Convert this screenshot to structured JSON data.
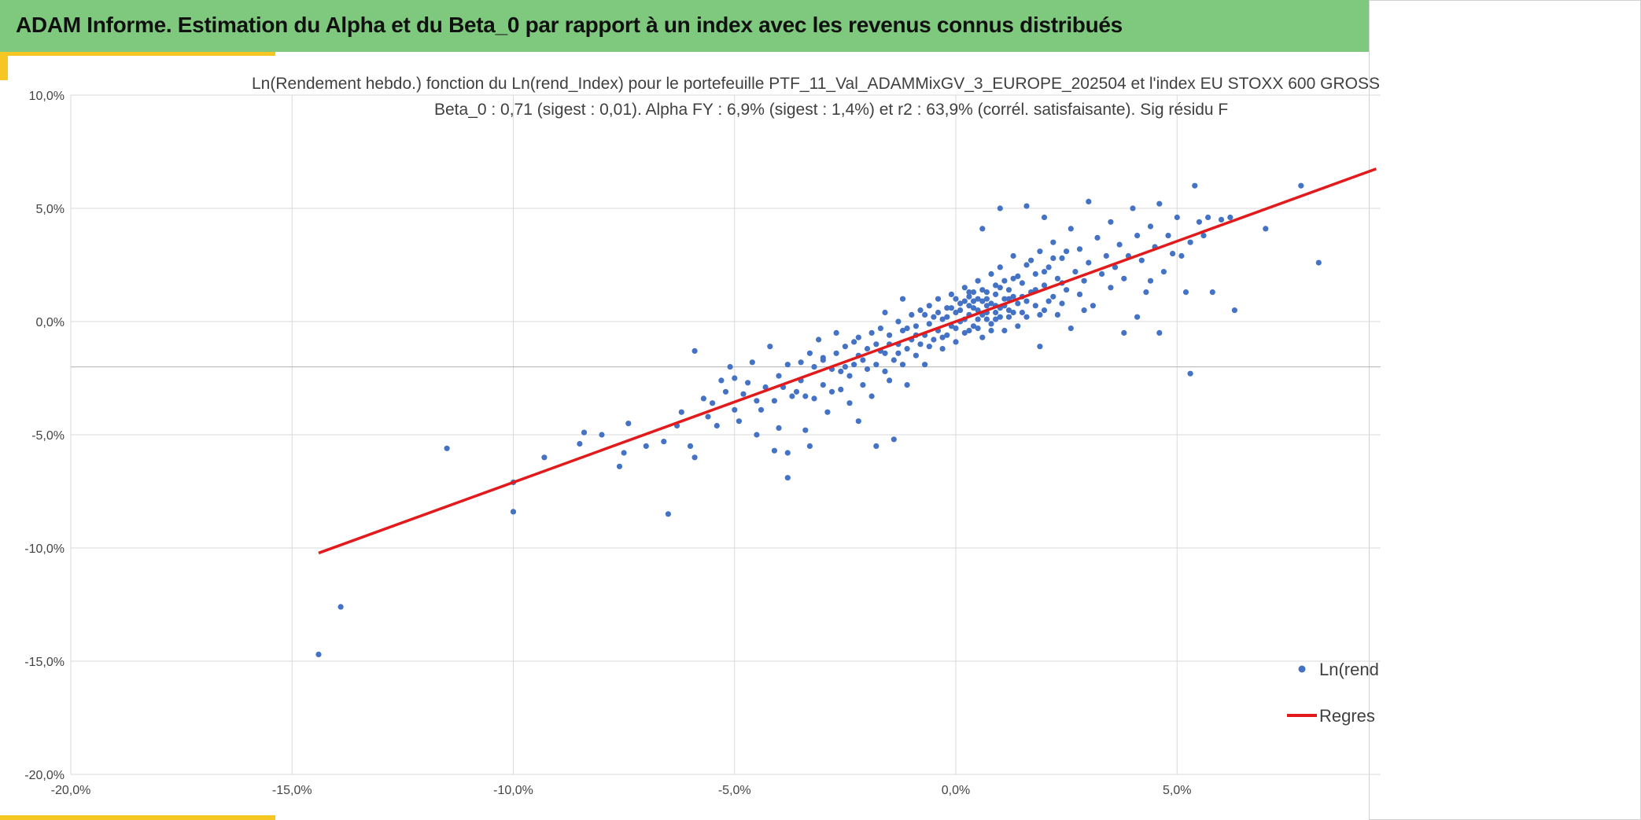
{
  "header": {
    "title": "ADAM Informe. Estimation du Alpha et du Beta_0 par rapport à un index avec les revenus connus distribués"
  },
  "colors": {
    "header_bg": "#7fc97f",
    "accent": "#f6c623",
    "points": "#4472c4",
    "regression": "#e31a1c",
    "grid": "#d9d9d9"
  },
  "chart_data": {
    "type": "scatter",
    "title": "Ln(Rendement hebdo.) fonction du Ln(rend_Index) pour le portefeuille PTF_11_Val_ADAMMixGV_3_EUROPE_202504 et l'index EU STOXX 600 GROSS",
    "subtitle": "Beta_0 : 0,71 (sigest : 0,01). Alpha FY : 6,9% (sigest : 1,4%) et r2 : 63,9% (corrél. satisfaisante). Sig résidu F",
    "xlabel": "",
    "ylabel": "",
    "xlim": [
      -0.2,
      0.095
    ],
    "ylim": [
      -0.2,
      0.1
    ],
    "x_ticks": [
      -0.2,
      -0.15,
      -0.1,
      -0.05,
      0.0,
      0.05
    ],
    "x_tick_labels": [
      "-20,0%",
      "-15,0%",
      "-10,0%",
      "-5,0%",
      "0,0%",
      "5,0%"
    ],
    "y_ticks": [
      0.1,
      0.05,
      0.0,
      -0.05,
      -0.1,
      -0.15,
      -0.2
    ],
    "y_tick_labels": [
      "10,0%",
      "5,0%",
      "0,0%",
      "-5,0%",
      "-10,0%",
      "-15,0%",
      "-20,0%"
    ],
    "grid": true,
    "legend_position": "bottom-right",
    "regression": {
      "name": "Regres",
      "slope": 0.71,
      "intercept": 0.0,
      "x_range": [
        -0.144,
        0.095
      ]
    },
    "series": [
      {
        "name": "Ln(rend",
        "points": [
          [
            -0.144,
            -0.147
          ],
          [
            -0.139,
            -0.126
          ],
          [
            -0.115,
            -0.056
          ],
          [
            -0.1,
            -0.084
          ],
          [
            -0.1,
            -0.071
          ],
          [
            -0.093,
            -0.06
          ],
          [
            -0.085,
            -0.054
          ],
          [
            -0.084,
            -0.049
          ],
          [
            -0.08,
            -0.05
          ],
          [
            -0.076,
            -0.064
          ],
          [
            -0.075,
            -0.058
          ],
          [
            -0.074,
            -0.045
          ],
          [
            -0.07,
            -0.055
          ],
          [
            -0.066,
            -0.053
          ],
          [
            -0.065,
            -0.085
          ],
          [
            -0.063,
            -0.046
          ],
          [
            -0.062,
            -0.04
          ],
          [
            -0.06,
            -0.055
          ],
          [
            -0.059,
            -0.06
          ],
          [
            -0.059,
            -0.013
          ],
          [
            -0.057,
            -0.034
          ],
          [
            -0.056,
            -0.042
          ],
          [
            -0.055,
            -0.036
          ],
          [
            -0.054,
            -0.046
          ],
          [
            -0.053,
            -0.026
          ],
          [
            -0.052,
            -0.031
          ],
          [
            -0.051,
            -0.02
          ],
          [
            -0.05,
            -0.039
          ],
          [
            -0.05,
            -0.025
          ],
          [
            -0.049,
            -0.044
          ],
          [
            -0.048,
            -0.032
          ],
          [
            -0.047,
            -0.027
          ],
          [
            -0.046,
            -0.018
          ],
          [
            -0.045,
            -0.05
          ],
          [
            -0.045,
            -0.035
          ],
          [
            -0.044,
            -0.039
          ],
          [
            -0.043,
            -0.029
          ],
          [
            -0.042,
            -0.011
          ],
          [
            -0.041,
            -0.035
          ],
          [
            -0.04,
            -0.047
          ],
          [
            -0.04,
            -0.024
          ],
          [
            -0.039,
            -0.029
          ],
          [
            -0.038,
            -0.058
          ],
          [
            -0.038,
            -0.019
          ],
          [
            -0.037,
            -0.033
          ],
          [
            -0.036,
            -0.031
          ],
          [
            -0.035,
            -0.026
          ],
          [
            -0.035,
            -0.018
          ],
          [
            -0.034,
            -0.033
          ],
          [
            -0.033,
            -0.055
          ],
          [
            -0.033,
            -0.014
          ],
          [
            -0.032,
            -0.034
          ],
          [
            -0.032,
            -0.02
          ],
          [
            -0.031,
            -0.008
          ],
          [
            -0.03,
            -0.028
          ],
          [
            -0.03,
            -0.016
          ],
          [
            -0.029,
            -0.04
          ],
          [
            -0.028,
            -0.031
          ],
          [
            -0.028,
            -0.021
          ],
          [
            -0.027,
            -0.014
          ],
          [
            -0.026,
            -0.03
          ],
          [
            -0.026,
            -0.022
          ],
          [
            -0.025,
            -0.011
          ],
          [
            -0.024,
            -0.036
          ],
          [
            -0.024,
            -0.024
          ],
          [
            -0.023,
            -0.019
          ],
          [
            -0.022,
            -0.015
          ],
          [
            -0.022,
            -0.007
          ],
          [
            -0.021,
            -0.028
          ],
          [
            -0.02,
            -0.021
          ],
          [
            -0.02,
            -0.012
          ],
          [
            -0.019,
            -0.033
          ],
          [
            -0.018,
            -0.019
          ],
          [
            -0.018,
            -0.01
          ],
          [
            -0.017,
            -0.003
          ],
          [
            -0.016,
            -0.022
          ],
          [
            -0.016,
            -0.014
          ],
          [
            -0.015,
            -0.026
          ],
          [
            -0.015,
            -0.006
          ],
          [
            -0.014,
            -0.017
          ],
          [
            -0.013,
            -0.01
          ],
          [
            -0.013,
            0.0
          ],
          [
            -0.012,
            -0.019
          ],
          [
            -0.012,
            -0.004
          ],
          [
            -0.011,
            -0.012
          ],
          [
            -0.011,
            -0.028
          ],
          [
            -0.01,
            -0.008
          ],
          [
            -0.01,
            0.003
          ],
          [
            -0.009,
            -0.015
          ],
          [
            -0.009,
            -0.002
          ],
          [
            -0.008,
            -0.01
          ],
          [
            -0.008,
            0.005
          ],
          [
            -0.007,
            -0.006
          ],
          [
            -0.007,
            -0.019
          ],
          [
            -0.006,
            -0.001
          ],
          [
            -0.006,
            0.007
          ],
          [
            -0.005,
            -0.008
          ],
          [
            -0.005,
            0.002
          ],
          [
            -0.004,
            -0.004
          ],
          [
            -0.004,
            0.01
          ],
          [
            -0.003,
            -0.012
          ],
          [
            -0.003,
            0.001
          ],
          [
            -0.002,
            -0.006
          ],
          [
            -0.002,
            0.006
          ],
          [
            -0.001,
            0.012
          ],
          [
            -0.001,
            -0.002
          ],
          [
            0.0,
            0.004
          ],
          [
            0.0,
            -0.009
          ],
          [
            0.001,
            0.008
          ],
          [
            0.001,
            0.0
          ],
          [
            0.002,
            0.015
          ],
          [
            0.002,
            -0.005
          ],
          [
            0.003,
            0.003
          ],
          [
            0.003,
            0.011
          ],
          [
            0.004,
            -0.002
          ],
          [
            0.004,
            0.006
          ],
          [
            0.005,
            0.018
          ],
          [
            0.005,
            0.001
          ],
          [
            0.006,
            0.009
          ],
          [
            0.006,
            -0.007
          ],
          [
            0.007,
            0.004
          ],
          [
            0.007,
            0.013
          ],
          [
            0.008,
            0.021
          ],
          [
            0.008,
            -0.001
          ],
          [
            0.009,
            0.007
          ],
          [
            0.009,
            0.016
          ],
          [
            0.01,
            0.002
          ],
          [
            0.01,
            0.024
          ],
          [
            0.011,
            0.01
          ],
          [
            0.011,
            -0.004
          ],
          [
            0.012,
            0.014
          ],
          [
            0.012,
            0.005
          ],
          [
            0.013,
            0.019
          ],
          [
            0.013,
            0.029
          ],
          [
            0.014,
            0.008
          ],
          [
            0.014,
            -0.002
          ],
          [
            0.015,
            0.017
          ],
          [
            0.015,
            0.011
          ],
          [
            0.016,
            0.025
          ],
          [
            0.016,
            0.002
          ],
          [
            0.017,
            0.013
          ],
          [
            0.018,
            0.021
          ],
          [
            0.018,
            0.007
          ],
          [
            0.019,
            0.031
          ],
          [
            0.019,
            -0.011
          ],
          [
            0.02,
            0.016
          ],
          [
            0.02,
            0.005
          ],
          [
            0.021,
            0.024
          ],
          [
            0.022,
            0.011
          ],
          [
            0.022,
            0.035
          ],
          [
            0.023,
            0.019
          ],
          [
            0.024,
            0.008
          ],
          [
            0.024,
            0.028
          ],
          [
            0.025,
            0.014
          ],
          [
            0.026,
            0.041
          ],
          [
            0.026,
            -0.003
          ],
          [
            0.027,
            0.022
          ],
          [
            0.028,
            0.012
          ],
          [
            0.028,
            0.032
          ],
          [
            0.029,
            0.018
          ],
          [
            0.03,
            0.026
          ],
          [
            0.03,
            0.053
          ],
          [
            0.031,
            0.007
          ],
          [
            0.032,
            0.037
          ],
          [
            0.033,
            0.021
          ],
          [
            0.034,
            0.029
          ],
          [
            0.035,
            0.044
          ],
          [
            0.035,
            0.015
          ],
          [
            0.036,
            0.024
          ],
          [
            0.037,
            0.034
          ],
          [
            0.038,
            0.019
          ],
          [
            0.038,
            -0.005
          ],
          [
            0.039,
            0.029
          ],
          [
            0.04,
            0.05
          ],
          [
            0.041,
            0.038
          ],
          [
            0.042,
            0.027
          ],
          [
            0.043,
            0.013
          ],
          [
            0.044,
            0.042
          ],
          [
            0.045,
            0.033
          ],
          [
            0.046,
            0.052
          ],
          [
            0.046,
            -0.005
          ],
          [
            0.047,
            0.022
          ],
          [
            0.048,
            0.038
          ],
          [
            0.049,
            0.03
          ],
          [
            0.05,
            0.046
          ],
          [
            0.051,
            0.029
          ],
          [
            0.052,
            0.013
          ],
          [
            0.053,
            0.035
          ],
          [
            0.053,
            -0.023
          ],
          [
            0.054,
            0.06
          ],
          [
            0.055,
            0.044
          ],
          [
            0.056,
            0.038
          ],
          [
            0.057,
            0.046
          ],
          [
            0.058,
            0.013
          ],
          [
            0.06,
            0.045
          ],
          [
            0.062,
            0.046
          ],
          [
            0.063,
            0.005
          ],
          [
            0.07,
            0.041
          ],
          [
            0.078,
            0.06
          ],
          [
            0.082,
            0.026
          ],
          [
            -0.03,
            -0.017
          ],
          [
            -0.027,
            -0.005
          ],
          [
            -0.025,
            -0.02
          ],
          [
            -0.023,
            -0.009
          ],
          [
            -0.021,
            -0.017
          ],
          [
            -0.019,
            -0.005
          ],
          [
            -0.017,
            -0.013
          ],
          [
            -0.015,
            -0.01
          ],
          [
            -0.013,
            -0.014
          ],
          [
            -0.011,
            -0.003
          ],
          [
            -0.009,
            -0.006
          ],
          [
            -0.007,
            0.003
          ],
          [
            -0.006,
            -0.011
          ],
          [
            -0.004,
            0.004
          ],
          [
            -0.003,
            -0.007
          ],
          [
            -0.001,
            0.006
          ],
          [
            0.0,
            -0.003
          ],
          [
            0.002,
            0.009
          ],
          [
            0.003,
            -0.004
          ],
          [
            0.004,
            0.013
          ],
          [
            0.006,
            0.003
          ],
          [
            0.007,
            0.01
          ],
          [
            0.008,
            -0.004
          ],
          [
            0.009,
            0.012
          ],
          [
            0.01,
            0.006
          ],
          [
            0.011,
            0.018
          ],
          [
            0.012,
            0.002
          ],
          [
            0.013,
            0.011
          ],
          [
            0.014,
            0.02
          ],
          [
            0.015,
            0.004
          ],
          [
            0.016,
            0.009
          ],
          [
            0.017,
            0.027
          ],
          [
            0.018,
            0.014
          ],
          [
            0.019,
            0.003
          ],
          [
            0.02,
            0.022
          ],
          [
            0.021,
            0.009
          ],
          [
            0.022,
            0.028
          ],
          [
            0.023,
            0.003
          ],
          [
            0.024,
            0.017
          ],
          [
            0.025,
            0.031
          ],
          [
            -0.002,
            0.002
          ],
          [
            0.0,
            0.01
          ],
          [
            0.002,
            0.001
          ],
          [
            0.004,
            0.009
          ],
          [
            0.005,
            0.005
          ],
          [
            0.006,
            0.014
          ],
          [
            0.008,
            0.008
          ],
          [
            0.009,
            0.001
          ],
          [
            0.01,
            0.015
          ],
          [
            0.012,
            0.01
          ],
          [
            0.001,
            0.005
          ],
          [
            0.003,
            0.007
          ],
          [
            0.005,
            0.01
          ],
          [
            0.007,
            0.007
          ],
          [
            0.009,
            0.004
          ],
          [
            0.011,
            0.007
          ],
          [
            0.013,
            0.004
          ],
          [
            0.007,
            0.001
          ],
          [
            0.005,
            -0.003
          ],
          [
            0.003,
            0.013
          ],
          [
            -0.014,
            -0.052
          ],
          [
            -0.018,
            -0.055
          ],
          [
            -0.022,
            -0.044
          ],
          [
            -0.034,
            -0.048
          ],
          [
            -0.038,
            -0.069
          ],
          [
            -0.041,
            -0.057
          ],
          [
            0.01,
            0.05
          ],
          [
            0.016,
            0.051
          ],
          [
            0.02,
            0.046
          ],
          [
            0.006,
            0.041
          ],
          [
            0.029,
            0.005
          ],
          [
            0.041,
            0.002
          ],
          [
            0.044,
            0.018
          ],
          [
            -0.012,
            0.01
          ],
          [
            -0.016,
            0.004
          ]
        ]
      }
    ]
  }
}
